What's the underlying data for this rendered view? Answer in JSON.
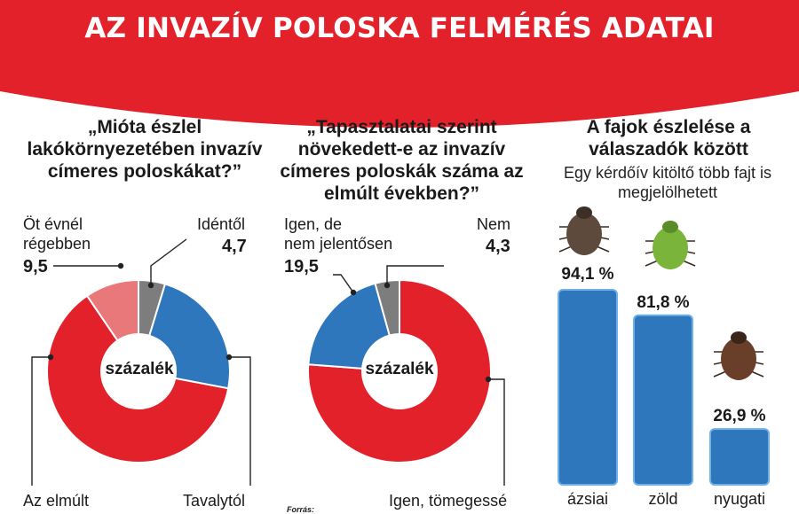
{
  "header": {
    "title": "AZ INVAZÍV POLOSKA FELMÉRÉS ADATAI"
  },
  "colors": {
    "red": "#e3212b",
    "blue": "#2e77bd",
    "pink": "#e8787a",
    "gray": "#7d7d7d"
  },
  "source_label": "Forrás:",
  "chart_data": [
    {
      "type": "pie",
      "title": "„Mióta észlel lakókörnyezetében invazív címeres poloskákat?”",
      "center_label": "százalék",
      "slices": [
        {
          "name": "Idéntől",
          "value": 4.7,
          "color": "gray",
          "value_label": "4,7"
        },
        {
          "name": "Tavalytól",
          "value": 23.3,
          "color": "blue",
          "value_label": ""
        },
        {
          "name": "Az elmúlt",
          "value": 62.5,
          "color": "red",
          "value_label": ""
        },
        {
          "name": "Öt évnél régebben",
          "value": 9.5,
          "color": "pink",
          "value_label": "9,5"
        }
      ],
      "labels": {
        "top_left": [
          "Öt évnél",
          "régebben"
        ],
        "top_right": "Idéntől",
        "bottom_left": "Az elmúlt",
        "bottom_right": "Tavalytól"
      }
    },
    {
      "type": "pie",
      "title": "„Tapasztalatai szerint növekedett-e az invazív címeres poloskák száma az elmúlt években?”",
      "center_label": "százalék",
      "slices": [
        {
          "name": "Igen, tömegessé",
          "value": 76.2,
          "color": "red",
          "value_label": ""
        },
        {
          "name": "Igen, de nem jelentősen",
          "value": 19.5,
          "color": "blue",
          "value_label": "19,5"
        },
        {
          "name": "Nem",
          "value": 4.3,
          "color": "gray",
          "value_label": "4,3"
        }
      ],
      "labels": {
        "top_left": [
          "Igen, de",
          "nem jelentősen"
        ],
        "top_right": "Nem",
        "bottom_right": "Igen, tömegessé"
      }
    },
    {
      "type": "bar",
      "title": "A fajok észlelése a válaszadók között",
      "subtitle": "Egy kérdőív kitöltő több fajt is megjelölhetett",
      "categories": [
        "ázsiai",
        "zöld",
        "nyugati"
      ],
      "values": [
        94.1,
        81.8,
        26.9
      ],
      "value_labels": [
        "94,1 %",
        "81,8 %",
        "26,9 %"
      ],
      "ylim": [
        0,
        100
      ]
    }
  ]
}
